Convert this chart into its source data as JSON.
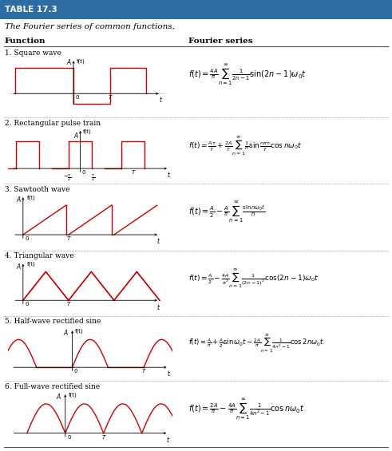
{
  "title": "TABLE 17.3",
  "subtitle": "The Fourier series of common functions.",
  "header_bg": "#2e6da4",
  "header_text_color": "#ffffff",
  "col1_header": "Function",
  "col2_header": "Fourier series",
  "bg_color": "#ffffff",
  "wave_color": "#cc0000",
  "axis_color": "#000000",
  "text_color": "#000000",
  "functions": [
    "1. Square wave",
    "2. Rectangular pulse train",
    "3. Sawtooth wave",
    "4. Triangular wave",
    "5. Half-wave rectified sine",
    "6. Full-wave rectified sine"
  ],
  "fourier_series": [
    "f(t) = \\frac{4A}{\\pi} \\sum_{n=1}^{\\infty} \\frac{1}{2n-1} \\sin(2n-1)\\omega_0 t",
    "f(t) = \\frac{A\\tau}{T} + \\frac{2A}{T} \\sum_{n=1}^{\\infty} \\frac{1}{n} \\sin\\frac{n\\pi\\tau}{T} \\cos n\\omega_0 t",
    "f(t) = \\frac{A}{2} - \\frac{A}{\\pi} \\sum_{n=1}^{\\infty} \\frac{\\sin n\\omega_0 t}{n}",
    "f(t) = \\frac{A}{2} - \\frac{4A}{\\pi^2} \\sum_{n=1}^{\\infty} \\frac{1}{(2n-1)^2} \\cos(2n-1)\\omega_0 t",
    "f(t) = \\frac{A}{\\pi} + \\frac{A}{2} \\sin\\omega_0 t - \\frac{2A}{\\pi} \\sum_{n=1}^{\\infty} \\frac{1}{4n^2-1} \\cos 2n\\omega_0 t",
    "f(t) = \\frac{2A}{\\pi} - \\frac{4A}{\\pi} \\sum_{n=1}^{\\infty} \\frac{1}{4n^2-1} \\cos n\\omega_0 t"
  ]
}
